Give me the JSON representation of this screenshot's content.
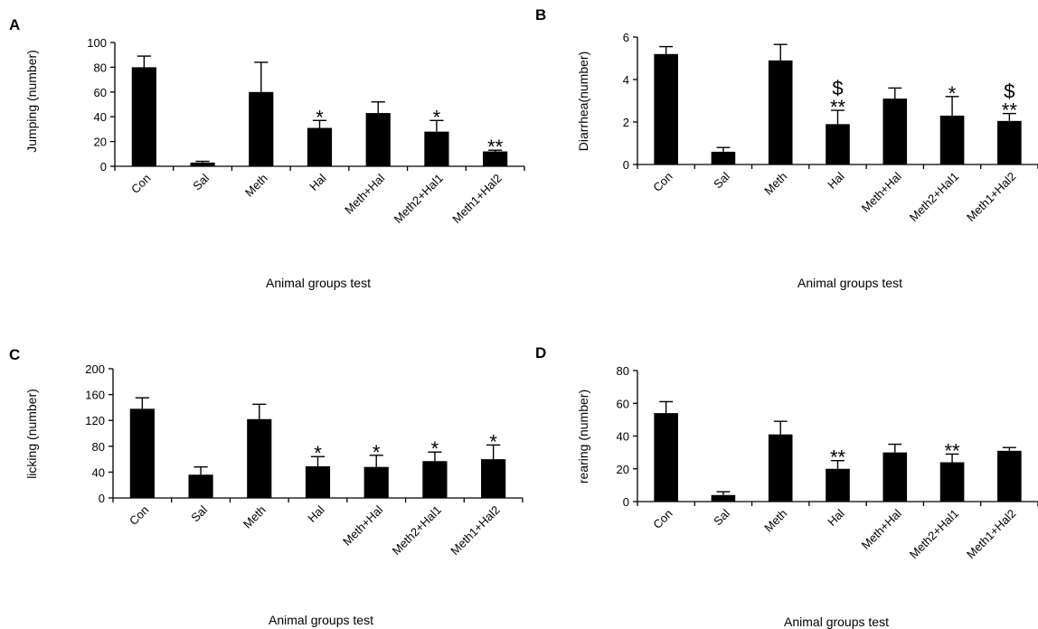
{
  "chart_data": [
    {
      "panel": "A",
      "type": "bar",
      "categories": [
        "Con",
        "Sal",
        "Meth",
        "Hal",
        "Meth+Hal",
        "Meth2+Hal1",
        "Meth1+Hal2"
      ],
      "values": [
        80,
        3,
        60,
        31,
        43,
        28,
        12
      ],
      "errors": [
        9,
        1,
        24,
        6,
        9,
        9,
        1
      ],
      "annotations": [
        "",
        "",
        "",
        "*",
        "",
        "*",
        "**"
      ],
      "ylabel": "Jumping (number)",
      "xlabel": "Animal groups test",
      "ylim": [
        0,
        100
      ],
      "yticks": [
        0,
        20,
        40,
        60,
        80,
        100
      ]
    },
    {
      "panel": "B",
      "type": "bar",
      "categories": [
        "Con",
        "Sal",
        "Meth",
        "Hal",
        "Meth+Hal",
        "Meth2+Hal1",
        "Meth1+Hal2"
      ],
      "values": [
        5.2,
        0.6,
        4.9,
        1.9,
        3.1,
        2.3,
        2.05
      ],
      "errors": [
        0.35,
        0.2,
        0.75,
        0.65,
        0.5,
        0.9,
        0.35
      ],
      "annotations": [
        "",
        "",
        "",
        "$\n**",
        "",
        "*",
        "$\n**"
      ],
      "ylabel": "Diarrhea(number)",
      "xlabel": "Animal groups test",
      "ylim": [
        0,
        6
      ],
      "yticks": [
        0,
        2,
        4,
        6
      ]
    },
    {
      "panel": "C",
      "type": "bar",
      "categories": [
        "Con",
        "Sal",
        "Meth",
        "Hal",
        "Meth+Hal",
        "Meth2+Hal1",
        "Meth1+Hal2"
      ],
      "values": [
        138,
        36,
        122,
        49,
        48,
        57,
        60
      ],
      "errors": [
        17,
        12,
        23,
        15,
        18,
        14,
        22
      ],
      "annotations": [
        "",
        "",
        "",
        "*",
        "*",
        "*",
        "*"
      ],
      "ylabel": "licking (number)",
      "xlabel": "Animal groups test",
      "ylim": [
        0,
        200
      ],
      "yticks": [
        0,
        40,
        80,
        120,
        160,
        200
      ]
    },
    {
      "panel": "D",
      "type": "bar",
      "categories": [
        "Con",
        "Sal",
        "Meth",
        "Hal",
        "Meth+Hal",
        "Meth2+Hal1",
        "Meth1+Hal2"
      ],
      "values": [
        54,
        4,
        41,
        20,
        30,
        24,
        31
      ],
      "errors": [
        7,
        2,
        8,
        5,
        5,
        5,
        2
      ],
      "annotations": [
        "",
        "",
        "",
        "**",
        "",
        "**",
        ""
      ],
      "ylabel": "rearing (number)",
      "xlabel": "Animal groups test",
      "ylim": [
        0,
        80
      ],
      "yticks": [
        0,
        20,
        40,
        60,
        80
      ]
    }
  ]
}
